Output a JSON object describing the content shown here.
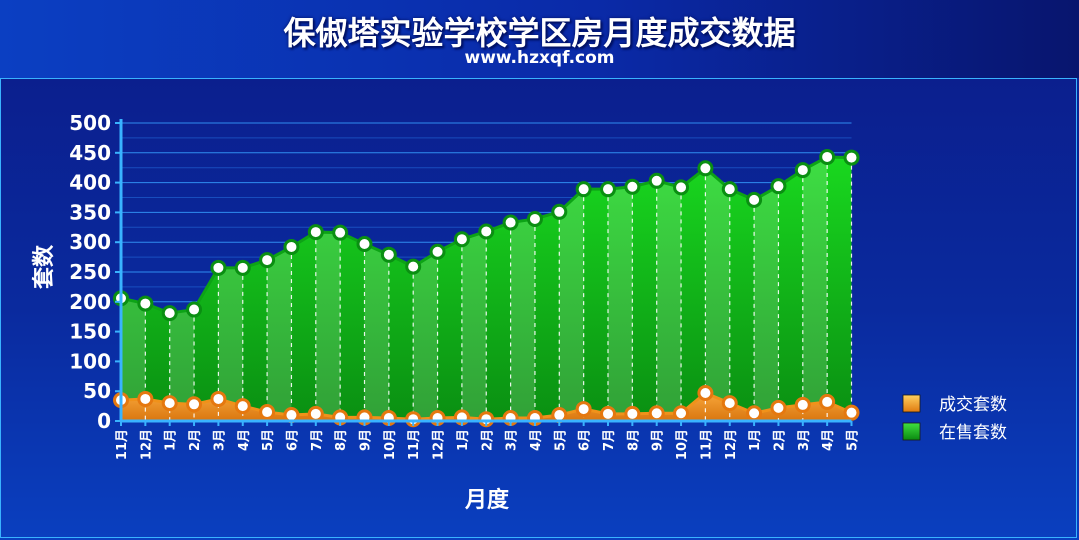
{
  "title": "保俶塔实验学校学区房月度成交数据",
  "subtitle": "www.hzxqf.com",
  "chart_data": {
    "type": "area",
    "xlabel": "月度",
    "ylabel": "套数",
    "ylim": [
      0,
      500
    ],
    "yticks": [
      0,
      50,
      100,
      150,
      200,
      250,
      300,
      350,
      400,
      450,
      500
    ],
    "categories": [
      "11月",
      "12月",
      "1月",
      "2月",
      "3月",
      "4月",
      "5月",
      "6月",
      "7月",
      "8月",
      "9月",
      "10月",
      "11月",
      "12月",
      "1月",
      "2月",
      "3月",
      "4月",
      "5月",
      "6月",
      "7月",
      "8月",
      "9月",
      "10月",
      "11月",
      "12月",
      "1月",
      "2月",
      "3月",
      "4月",
      "5月"
    ],
    "series": [
      {
        "name": "成交套数",
        "color": "#f39a1c",
        "values": [
          35,
          37,
          30,
          28,
          37,
          25,
          15,
          10,
          12,
          6,
          6,
          5,
          3,
          5,
          6,
          3,
          5,
          5,
          10,
          20,
          12,
          12,
          13,
          13,
          47,
          30,
          13,
          22,
          27,
          32,
          14
        ]
      },
      {
        "name": "在售套数",
        "color": "#10c21a",
        "values": [
          206,
          197,
          181,
          187,
          257,
          257,
          270,
          292,
          317,
          316,
          297,
          279,
          259,
          284,
          305,
          318,
          333,
          339,
          351,
          389,
          389,
          393,
          403,
          392,
          424,
          389,
          371,
          394,
          421,
          443,
          442
        ]
      }
    ],
    "legend_position": "right",
    "grid": true
  }
}
